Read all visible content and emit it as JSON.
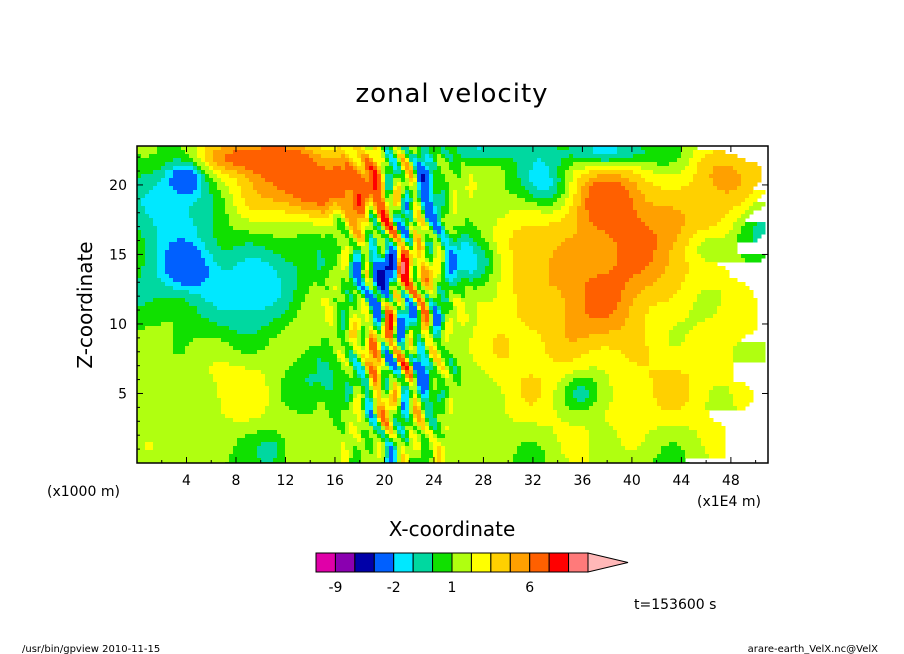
{
  "chart_data": {
    "type": "heatmap",
    "title": "zonal velocity",
    "xlabel": "X-coordinate",
    "ylabel": "Z-coordinate",
    "x_unit": "(x1E4 m)",
    "y_unit": "(x1000 m)",
    "x_ticks": [
      "4",
      "8",
      "12",
      "16",
      "20",
      "24",
      "28",
      "32",
      "36",
      "40",
      "44",
      "48"
    ],
    "y_ticks": [
      "5",
      "10",
      "15",
      "20"
    ],
    "xlim": [
      0,
      51
    ],
    "ylim": [
      0,
      22.8
    ],
    "colorbar": {
      "labels": [
        "-9",
        "-2",
        "1",
        "6"
      ],
      "label_values": [
        -9,
        -2,
        1,
        6
      ],
      "levels": [
        -12,
        -9,
        -6,
        -3,
        -2,
        -1,
        0,
        1,
        2,
        3,
        4,
        6,
        9,
        12
      ],
      "colors": [
        "#e000a8",
        "#8a00b0",
        "#0000a8",
        "#0060ff",
        "#00e8ff",
        "#00d8a0",
        "#10e000",
        "#b0ff10",
        "#ffff00",
        "#ffd000",
        "#ffa000",
        "#ff6000",
        "#ff0000",
        "#ff7a7a",
        "#ffb8b8"
      ]
    },
    "time_label": "t=153600 s"
  },
  "footer": {
    "left": "/usr/bin/gpview  2010-11-15",
    "right": "arare-earth_VelX.nc@VelX"
  }
}
